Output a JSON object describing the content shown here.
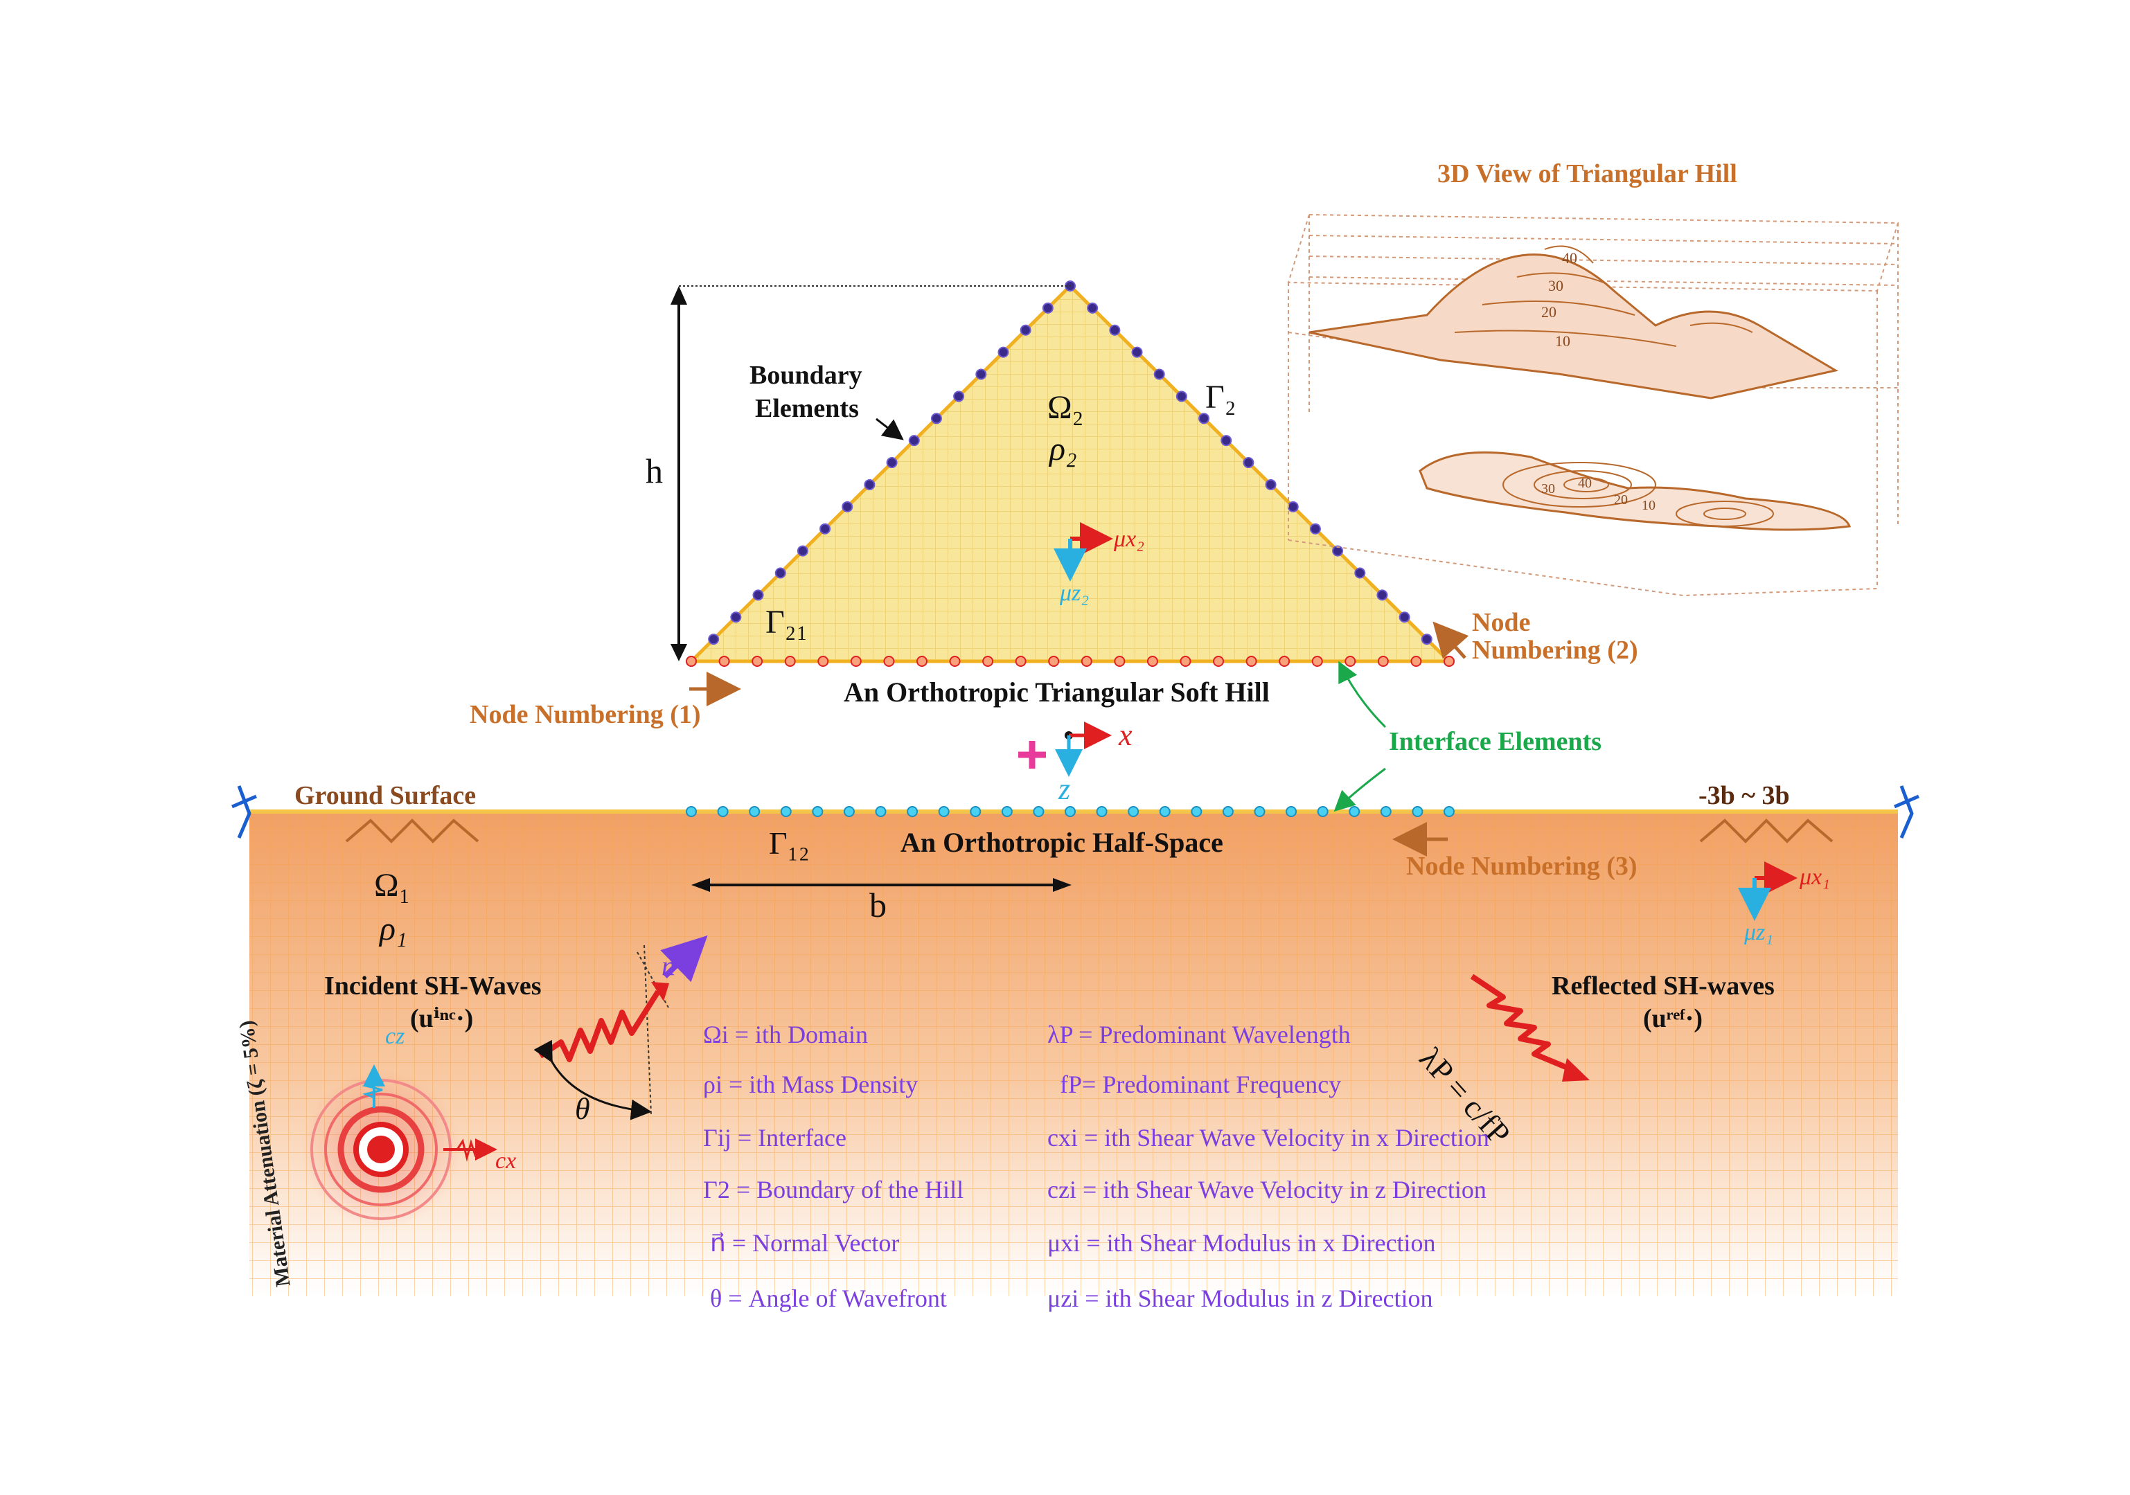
{
  "labels": {
    "view3d_title": "3D View of Triangular Hill",
    "boundary_line1": "Boundary",
    "boundary_line2": "Elements",
    "omega2": "Ω₂",
    "rho2": "ρ₂",
    "gamma2": "Γ₂",
    "gamma21": "Γ₂₁",
    "h": "h",
    "node1": "Node Numbering (1)",
    "node2_line1": "Node",
    "node2_line2": "Numbering (2)",
    "node3": "Node Numbering (3)",
    "hill_title": "An Orthotropic Triangular Soft Hill",
    "halfspace_title": "An Orthotropic Half-Space",
    "interface": "Interface Elements",
    "ground": "Ground Surface",
    "range": "-3b ~ 3b",
    "gamma12": "Γ₁₂",
    "b": "b",
    "omega1": "Ω₁",
    "rho1": "ρ₁",
    "incident_line1": "Incident SH-Waves",
    "incident_line2": "(uⁱⁿᶜ·)",
    "reflected_line1": "Reflected SH-waves",
    "reflected_line2": "(uʳᵉᶠ·)",
    "wavelength_formula": "λP = c/fP",
    "attenuation": "Material Attenuation (ζ = 5%)",
    "theta": "θ",
    "normal": "n⃗",
    "axis_x": "x",
    "axis_z": "z",
    "mu_x2": "μx₂",
    "mu_z2": "μz₂",
    "mu_x1": "μx₁",
    "mu_z1": "μz₁",
    "cx": "cx",
    "cz": "cz",
    "contours_3d": [
      "40",
      "30",
      "20",
      "10"
    ],
    "contours_map": [
      "40",
      "30",
      "20",
      "10"
    ]
  },
  "legend_left": [
    "Ωi = ith Domain",
    "ρi = ith Mass Density",
    "Γij = Interface",
    "Γ2 = Boundary of the Hill",
    "n⃗ = Normal Vector",
    "θ = Angle of Wavefront"
  ],
  "legend_right": [
    "λP = Predominant Wavelength",
    "fP= Predominant Frequency",
    "cxi = ith Shear Wave Velocity in x Direction",
    "czi = ith Shear Wave Velocity in z Direction",
    "μxi = ith Shear Modulus in x Direction",
    "μzi = ith Shear Modulus in z Direction"
  ],
  "colors": {
    "hill_fill": "#f8e79a",
    "halfspace_fill": "#f4a86a",
    "brown": "#b8682a",
    "purple": "#7b3fe0",
    "green": "#1aa84a",
    "red": "#e02020",
    "cyan": "#2ab0e0",
    "dot_purple": "#3a2a8a"
  }
}
